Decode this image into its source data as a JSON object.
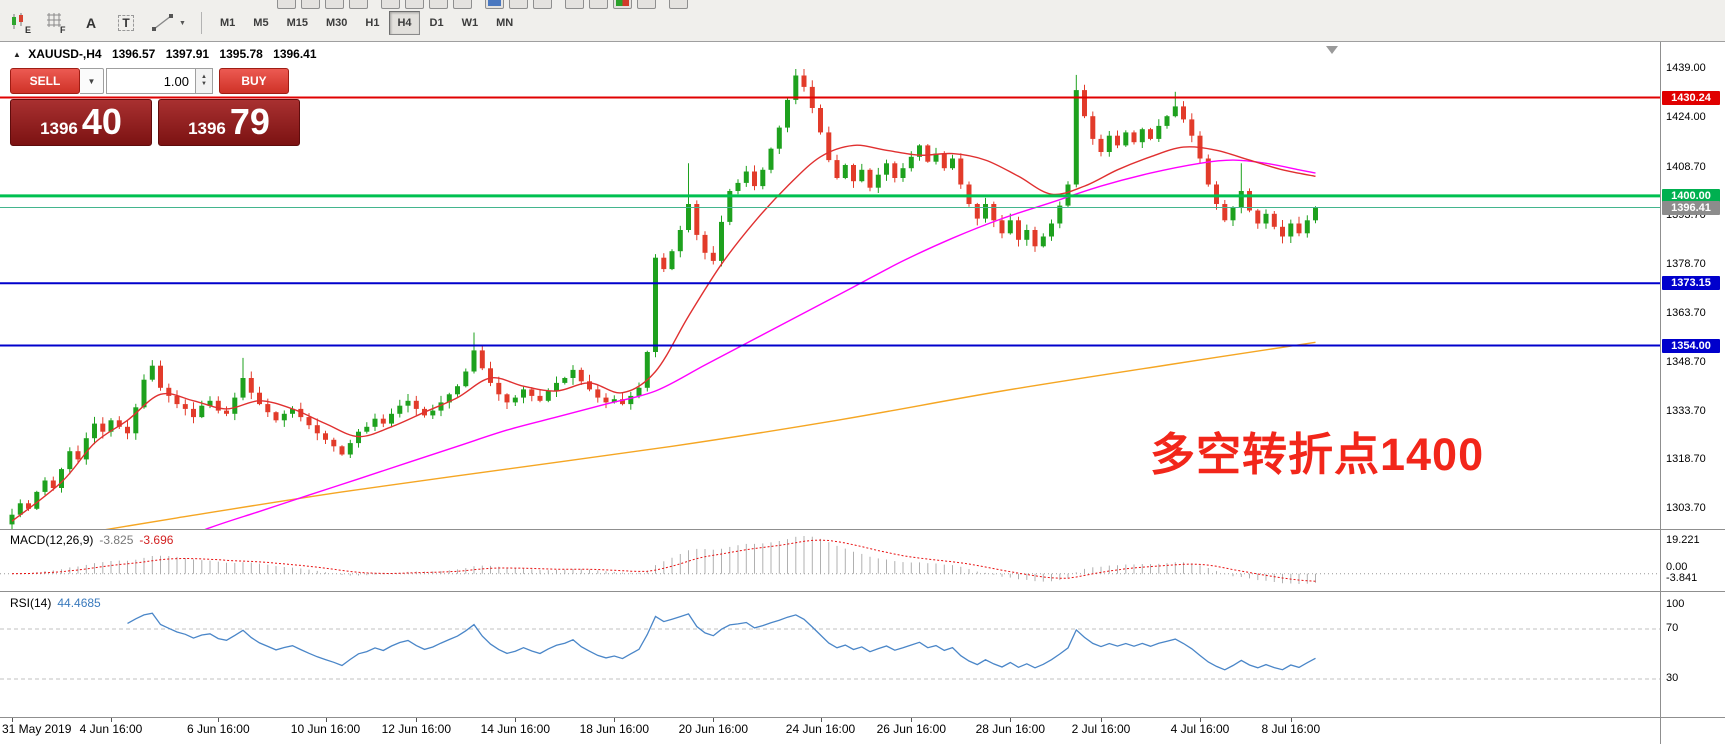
{
  "icons": {
    "chevron_down": "▼",
    "chevron_up": "▲"
  },
  "toolbar": {
    "tools": [
      {
        "badge": "E"
      },
      {
        "badge": "F"
      },
      {
        "label": "A"
      },
      {
        "label": "T"
      },
      {
        "label": ""
      }
    ],
    "timeframes": [
      "M1",
      "M5",
      "M15",
      "M30",
      "H1",
      "H4",
      "D1",
      "W1",
      "MN"
    ],
    "selected_timeframe": "H4"
  },
  "chart": {
    "header": {
      "marker": "▲",
      "symbol": "XAUUSD-,H4",
      "open": "1396.57",
      "high": "1397.91",
      "low": "1395.78",
      "close": "1396.41"
    },
    "trade_panel": {
      "sell_label": "SELL",
      "buy_label": "BUY",
      "volume": "1.00",
      "sell_main": "1396",
      "sell_pips": "40",
      "buy_main": "1396",
      "buy_pips": "79"
    },
    "annotation": "多空转折点1400",
    "levels": [
      {
        "price": 1430.24,
        "color": "#e00000",
        "width": 2
      },
      {
        "price": 1400.0,
        "color": "#00c050",
        "width": 3
      },
      {
        "price": 1396.41,
        "color": "#43b58d",
        "width": 1
      },
      {
        "price": 1373.15,
        "color": "#0000cc",
        "width": 2
      },
      {
        "price": 1354.0,
        "color": "#0000cc",
        "width": 2
      }
    ]
  },
  "price_axis": {
    "labels": [
      {
        "text": "1439.00",
        "price": 1439.0
      },
      {
        "text": "1424.00",
        "price": 1424.0
      },
      {
        "text": "1408.70",
        "price": 1408.7
      },
      {
        "text": "1393.70",
        "price": 1393.7
      },
      {
        "text": "1378.70",
        "price": 1378.7
      },
      {
        "text": "1363.70",
        "price": 1363.7
      },
      {
        "text": "1348.70",
        "price": 1348.7
      },
      {
        "text": "1333.70",
        "price": 1333.7
      },
      {
        "text": "1318.70",
        "price": 1318.7
      },
      {
        "text": "1303.70",
        "price": 1303.7
      }
    ],
    "badges": [
      {
        "text": "1430.24",
        "price": 1430.24,
        "bg": "#e00000",
        "fg": "#ffffff"
      },
      {
        "text": "1400.00",
        "price": 1400.0,
        "bg": "#00b050",
        "fg": "#ffffff"
      },
      {
        "text": "1396.41",
        "price": 1396.41,
        "bg": "#8c8c8c",
        "fg": "#ffffff"
      },
      {
        "text": "1373.15",
        "price": 1373.15,
        "bg": "#0000cc",
        "fg": "#ffffff"
      },
      {
        "text": "1354.00",
        "price": 1354.0,
        "bg": "#0000cc",
        "fg": "#ffffff"
      }
    ]
  },
  "macd": {
    "label": "MACD(12,26,9)",
    "value": "-3.825",
    "signal_value": "-3.696",
    "axis_labels": [
      "19.221",
      "0.00",
      "-3.841"
    ]
  },
  "rsi": {
    "label": "RSI(14)",
    "value": "44.4685",
    "axis_labels": [
      "100",
      "70",
      "30"
    ],
    "levels": [
      70,
      30
    ]
  },
  "time_axis": [
    {
      "i": 0,
      "label": "31 May 2019"
    },
    {
      "i": 12,
      "label": "4 Jun 16:00"
    },
    {
      "i": 25,
      "label": "6 Jun 16:00"
    },
    {
      "i": 38,
      "label": "10 Jun 16:00"
    },
    {
      "i": 49,
      "label": "12 Jun 16:00"
    },
    {
      "i": 61,
      "label": "14 Jun 16:00"
    },
    {
      "i": 73,
      "label": "18 Jun 16:00"
    },
    {
      "i": 85,
      "label": "20 Jun 16:00"
    },
    {
      "i": 98,
      "label": "24 Jun 16:00"
    },
    {
      "i": 109,
      "label": "26 Jun 16:00"
    },
    {
      "i": 121,
      "label": "28 Jun 16:00"
    },
    {
      "i": 132,
      "label": "2 Jul 16:00"
    },
    {
      "i": 144,
      "label": "4 Jul 16:00"
    },
    {
      "i": 155,
      "label": "8 Jul 16:00"
    }
  ],
  "chart_data": {
    "type": "candlestick",
    "symbol": "XAUUSD-",
    "timeframe": "H4",
    "ylim": [
      1297,
      1440
    ],
    "first_open": 1299.0,
    "closes": [
      1302.0,
      1305.5,
      1303.8,
      1309.0,
      1312.5,
      1310.2,
      1316.0,
      1321.5,
      1319.0,
      1325.5,
      1330.0,
      1327.5,
      1331.0,
      1329.0,
      1327.0,
      1335.0,
      1343.5,
      1347.8,
      1341.0,
      1338.5,
      1336.0,
      1334.5,
      1332.0,
      1335.5,
      1337.0,
      1334.0,
      1333.0,
      1338.0,
      1344.0,
      1339.5,
      1336.0,
      1333.5,
      1331.0,
      1333.0,
      1334.5,
      1332.0,
      1329.5,
      1327.0,
      1325.0,
      1323.0,
      1320.5,
      1324.0,
      1327.5,
      1329.0,
      1331.5,
      1330.0,
      1333.0,
      1335.5,
      1337.0,
      1334.5,
      1332.5,
      1334.0,
      1336.5,
      1339.0,
      1341.5,
      1346.0,
      1352.5,
      1347.0,
      1342.5,
      1339.0,
      1336.5,
      1338.0,
      1340.5,
      1338.5,
      1337.0,
      1340.0,
      1342.5,
      1344.0,
      1346.5,
      1343.0,
      1340.5,
      1338.0,
      1336.5,
      1337.5,
      1336.0,
      1338.5,
      1341.0,
      1352.0,
      1381.0,
      1377.5,
      1383.0,
      1389.5,
      1397.5,
      1388.0,
      1382.5,
      1380.0,
      1392.0,
      1401.5,
      1404.0,
      1407.5,
      1403.0,
      1408.0,
      1414.5,
      1421.0,
      1429.5,
      1437.0,
      1433.5,
      1427.0,
      1419.5,
      1411.0,
      1405.5,
      1409.5,
      1404.5,
      1408.0,
      1402.5,
      1406.5,
      1410.0,
      1405.5,
      1408.5,
      1412.0,
      1415.5,
      1410.5,
      1413.0,
      1408.5,
      1411.5,
      1403.5,
      1397.5,
      1393.0,
      1397.5,
      1392.5,
      1388.5,
      1392.5,
      1386.5,
      1389.5,
      1384.5,
      1387.5,
      1391.5,
      1397.0,
      1403.5,
      1432.5,
      1424.5,
      1417.5,
      1413.5,
      1418.5,
      1415.5,
      1419.5,
      1416.5,
      1420.5,
      1417.5,
      1421.5,
      1424.5,
      1427.5,
      1423.5,
      1418.5,
      1411.5,
      1403.5,
      1397.5,
      1392.5,
      1396.5,
      1401.5,
      1395.5,
      1391.5,
      1394.5,
      1390.5,
      1387.5,
      1391.5,
      1388.5,
      1392.5,
      1396.41
    ],
    "wick_highs": {
      "17": 1349.5,
      "28": 1350.2,
      "56": 1358.0,
      "82": 1410.0,
      "95": 1439.0,
      "129": 1437.2,
      "141": 1432.0,
      "149": 1410.0
    },
    "ma_fast": [
      [
        0,
        1300
      ],
      [
        6,
        1312
      ],
      [
        10,
        1324
      ],
      [
        14,
        1331
      ],
      [
        18,
        1339
      ],
      [
        22,
        1337
      ],
      [
        26,
        1334.5
      ],
      [
        30,
        1337
      ],
      [
        34,
        1334.5
      ],
      [
        38,
        1330
      ],
      [
        42,
        1326
      ],
      [
        46,
        1329
      ],
      [
        50,
        1333.5
      ],
      [
        54,
        1338
      ],
      [
        58,
        1344
      ],
      [
        62,
        1341.5
      ],
      [
        66,
        1340
      ],
      [
        70,
        1342.5
      ],
      [
        74,
        1339.5
      ],
      [
        78,
        1346
      ],
      [
        82,
        1363
      ],
      [
        86,
        1379
      ],
      [
        90,
        1392
      ],
      [
        94,
        1403
      ],
      [
        98,
        1412
      ],
      [
        102,
        1415.5
      ],
      [
        106,
        1414
      ],
      [
        110,
        1412.5
      ],
      [
        114,
        1413
      ],
      [
        118,
        1411
      ],
      [
        122,
        1406
      ],
      [
        126,
        1400.5
      ],
      [
        130,
        1403
      ],
      [
        134,
        1408
      ],
      [
        138,
        1412
      ],
      [
        142,
        1415
      ],
      [
        146,
        1414
      ],
      [
        150,
        1411
      ],
      [
        154,
        1408
      ],
      [
        158,
        1406
      ]
    ],
    "ma_mid": [
      [
        18,
        1292
      ],
      [
        24,
        1298
      ],
      [
        30,
        1303
      ],
      [
        36,
        1308
      ],
      [
        42,
        1313
      ],
      [
        48,
        1318
      ],
      [
        54,
        1323
      ],
      [
        60,
        1328
      ],
      [
        66,
        1332
      ],
      [
        72,
        1336
      ],
      [
        78,
        1340
      ],
      [
        84,
        1348
      ],
      [
        90,
        1356
      ],
      [
        96,
        1364
      ],
      [
        102,
        1372
      ],
      [
        108,
        1380
      ],
      [
        114,
        1387
      ],
      [
        120,
        1393
      ],
      [
        126,
        1398
      ],
      [
        132,
        1403
      ],
      [
        138,
        1407
      ],
      [
        144,
        1410
      ],
      [
        148,
        1411
      ],
      [
        152,
        1410
      ],
      [
        156,
        1408
      ],
      [
        158,
        1407
      ]
    ],
    "ma_slow": [
      [
        8,
        1296
      ],
      [
        20,
        1301
      ],
      [
        40,
        1309
      ],
      [
        60,
        1316
      ],
      [
        80,
        1323
      ],
      [
        100,
        1331
      ],
      [
        120,
        1340
      ],
      [
        140,
        1348
      ],
      [
        158,
        1355
      ]
    ]
  },
  "colors": {
    "candle_up": "#1ea11e",
    "candle_down": "#e23b2a",
    "ma_fast": "#e03030",
    "ma_mid": "#ff00ff",
    "ma_slow": "#f5a623",
    "macd_hist": "#b0b0b0",
    "macd_signal": "#e81111",
    "rsi_line": "#4a86c8",
    "rsi_levels": "#c0c0c0",
    "annotation": "#f2261a"
  }
}
